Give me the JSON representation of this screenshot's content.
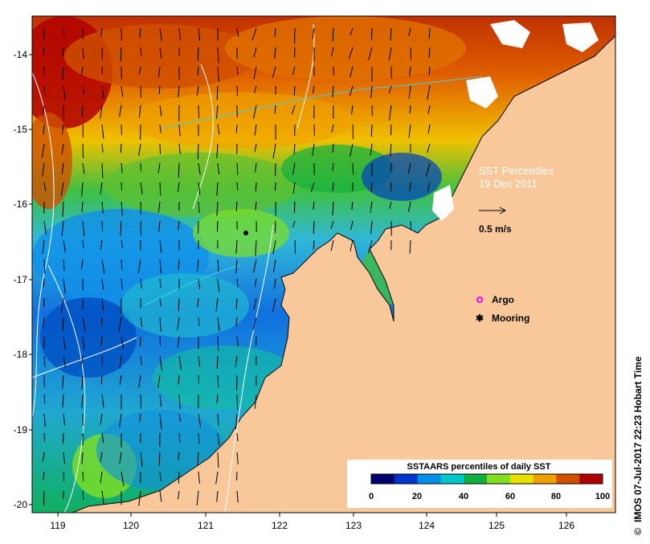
{
  "map": {
    "title": "SST Percentiles",
    "date": "19 Dec 2011",
    "credit": "IMOS 07-Jul-2017 22:23 Hobart Time",
    "credit_symbol": "©",
    "land_color": "#f8c89a",
    "x_ticks": [
      "119",
      "120",
      "121",
      "122",
      "123",
      "124",
      "125",
      "126"
    ],
    "y_ticks": [
      "-14",
      "-15",
      "-16",
      "-17",
      "-18",
      "-19",
      "-20"
    ],
    "scale_label": "0.5 m/s",
    "legend_items": [
      {
        "label": "Argo",
        "symbol": "magenta-circle"
      },
      {
        "label": "Mooring",
        "symbol": "black-star"
      }
    ],
    "colorbar": {
      "title": "SSTAARS percentiles of daily SST",
      "ticks": [
        "0",
        "20",
        "40",
        "60",
        "80",
        "100"
      ],
      "colors": [
        "#000070",
        "#0033cc",
        "#0090e8",
        "#00c8c8",
        "#10b040",
        "#80e020",
        "#e8e000",
        "#f0a000",
        "#d05000",
        "#b00000"
      ]
    }
  }
}
